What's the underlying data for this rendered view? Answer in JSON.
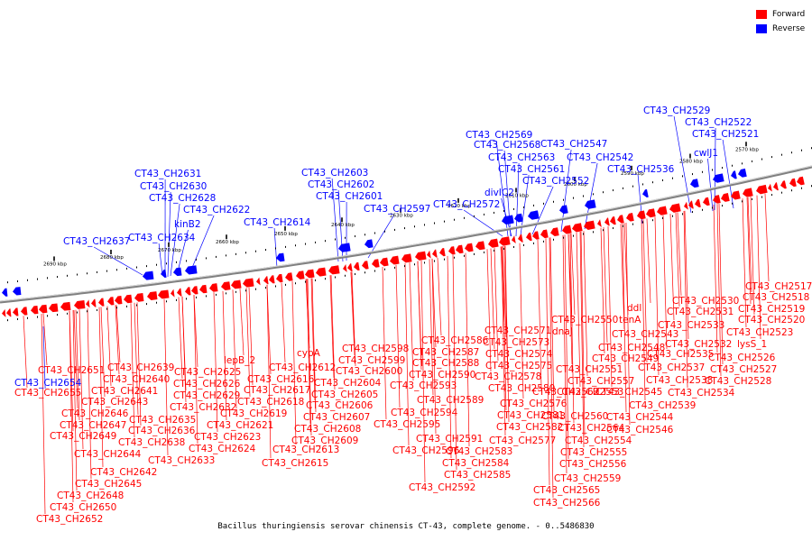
{
  "legend": [
    {
      "label": "Forward",
      "color": "#ff0000"
    },
    {
      "label": "Reverse",
      "color": "#0000ff"
    }
  ],
  "caption": "Bacillus thuringiensis serovar chinensis CT-43, complete genome. - 0..5486830",
  "colors": {
    "forward": "#ff0000",
    "reverse": "#0000ff",
    "backbone": "#808080"
  },
  "ticks": [
    "2690 kbp",
    "2680 kbp",
    "2670 kbp",
    "2660 kbp",
    "2650 kbp",
    "2640 kbp",
    "2630 kbp",
    "2620 kbp",
    "2610 kbp",
    "2600 kbp",
    "2590 kbp",
    "2580 kbp",
    "2570 kbp"
  ],
  "reverse_genes": [
    "CT43_CH2654",
    "CT43_CH2637",
    "CT43_CH2634",
    "CT43_CH2631",
    "CT43_CH2630",
    "CT43_CH2628",
    "kinB2",
    "CT43_CH2622",
    "CT43_CH2614",
    "CT43_CH2603",
    "CT43_CH2602",
    "CT43_CH2601",
    "CT43_CH2597",
    "CT43_CH2572",
    "divIC2",
    "CT43_CH2569",
    "CT43_CH2568",
    "CT43_CH2563",
    "CT43_CH2561",
    "CT43_CH2552",
    "CT43_CH2547",
    "CT43_CH2542",
    "CT43_CH2536",
    "CT43_CH2529",
    "CT43_CH2522",
    "CT43_CH2521",
    "cwlJ1"
  ],
  "forward_genes": [
    "CT43_CH2651",
    "CT43_CH2655",
    "CT43_CH2646",
    "CT43_CH2647",
    "CT43_CH2649",
    "CT43_CH2644",
    "CT43_CH2642",
    "CT43_CH2645",
    "CT43_CH2648",
    "CT43_CH2650",
    "CT43_CH2652",
    "CT43_CH2639",
    "CT43_CH2640",
    "CT43_CH2641",
    "CT43_CH2643",
    "CT43_CH2635",
    "CT43_CH2636",
    "CT43_CH2638",
    "CT43_CH2633",
    "CT43_CH2625",
    "CT43_CH2626",
    "CT43_CH2629",
    "CT43_CH2632",
    "lepB_2",
    "CT43_CH2616",
    "CT43_CH2617",
    "CT43_CH2618",
    "CT43_CH2619",
    "CT43_CH2621",
    "CT43_CH2623",
    "CT43_CH2624",
    "cypA",
    "CT43_CH2612",
    "CT43_CH2604",
    "CT43_CH2605",
    "CT43_CH2606",
    "CT43_CH2607",
    "CT43_CH2608",
    "CT43_CH2609",
    "CT43_CH2613",
    "CT43_CH2615",
    "CT43_CH2598",
    "CT43_CH2599",
    "CT43_CH2600",
    "CT43_CH2593",
    "CT43_CH2594",
    "CT43_CH2595",
    "CT43_CH2596",
    "CT43_CH2586",
    "CT43_CH2587",
    "CT43_CH2588",
    "CT43_CH2590",
    "CT43_CH2589",
    "CT43_CH2591",
    "CT43_CH2583",
    "CT43_CH2584",
    "CT43_CH2585",
    "CT43_CH2592",
    "CT43_CH2571",
    "CT43_CH2573",
    "CT43_CH2574",
    "CT43_CH2575",
    "CT43_CH2578",
    "CT43_CH2580",
    "CT43_CH2576",
    "CT43_CH2581",
    "CT43_CH2582",
    "CT43_CH2577",
    "dnaJ",
    "CT43_CH2550",
    "CT43_CH2548",
    "CT43_CH2549",
    "CT43_CH2551",
    "CT43_CH2557",
    "CT43_CH2553",
    "CT43_CH2562",
    "CT43_CH2560",
    "CT43_CH2564",
    "CT43_CH2554",
    "CT43_CH2555",
    "CT43_CH2556",
    "CT43_CH2559",
    "CT43_CH2565",
    "CT43_CH2566",
    "ddl",
    "tenA",
    "CT43_CH2543",
    "CT43_CH2545",
    "CT43_CH2544",
    "CT43_CH2546",
    "CT43_CH2530",
    "CT43_CH2531",
    "CT43_CH2533",
    "CT43_CH2535",
    "CT43_CH2532",
    "CT43_CH2537",
    "CT43_CH2538",
    "CT43_CH2539",
    "CT43_CH2534",
    "CT43_CH2517",
    "CT43_CH2518",
    "CT43_CH2519",
    "CT43_CH2520",
    "CT43_CH2523",
    "lysS_1",
    "CT43_CH2526",
    "CT43_CH2527",
    "CT43_CH2528"
  ]
}
